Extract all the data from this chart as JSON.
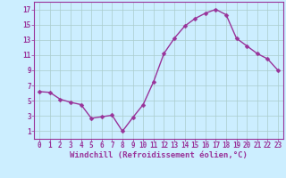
{
  "x": [
    0,
    1,
    2,
    3,
    4,
    5,
    6,
    7,
    8,
    9,
    10,
    11,
    12,
    13,
    14,
    15,
    16,
    17,
    18,
    19,
    20,
    21,
    22,
    23
  ],
  "y": [
    6.2,
    6.1,
    5.2,
    4.8,
    4.5,
    2.7,
    2.9,
    3.1,
    1.0,
    2.8,
    4.5,
    7.5,
    11.2,
    13.2,
    14.8,
    15.8,
    16.5,
    17.0,
    16.3,
    13.2,
    12.2,
    11.2,
    10.5,
    9.0
  ],
  "line_color": "#993399",
  "markersize": 2.5,
  "linewidth": 1.0,
  "bg_color": "#cceeff",
  "grid_color": "#aacccc",
  "xlabel": "Windchill (Refroidissement éolien,°C)",
  "xlabel_color": "#993399",
  "xlabel_fontsize": 6.5,
  "yticks": [
    1,
    3,
    5,
    7,
    9,
    11,
    13,
    15,
    17
  ],
  "ylim": [
    0.0,
    18.0
  ],
  "xlim": [
    -0.5,
    23.5
  ],
  "xticks": [
    0,
    1,
    2,
    3,
    4,
    5,
    6,
    7,
    8,
    9,
    10,
    11,
    12,
    13,
    14,
    15,
    16,
    17,
    18,
    19,
    20,
    21,
    22,
    23
  ],
  "tick_color": "#993399",
  "tick_fontsize": 5.5,
  "spine_color": "#993399"
}
